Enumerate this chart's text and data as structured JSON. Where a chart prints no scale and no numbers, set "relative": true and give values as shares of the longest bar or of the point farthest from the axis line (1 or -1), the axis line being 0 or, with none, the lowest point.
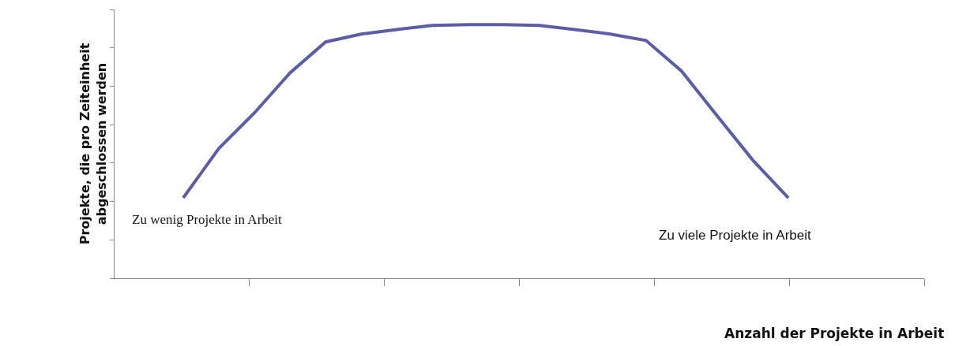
{
  "chart_data": {
    "type": "line",
    "relative": true,
    "xlabel": "Anzahl der Projekte in Arbeit",
    "ylabel": "Projekte, die pro Zeiteinheit\nabgeschlossen werden",
    "categories": [
      null,
      null,
      null,
      null,
      null,
      null,
      null,
      null,
      null,
      null,
      null,
      null,
      null,
      null,
      null,
      null,
      null,
      null
    ],
    "series": [
      {
        "color": "#5b5ea6",
        "values": [
          0.317,
          0.512,
          0.652,
          0.81,
          0.932,
          0.963,
          0.981,
          0.997,
          1,
          1,
          0.997,
          0.981,
          0.963,
          0.938,
          0.817,
          0.64,
          0.466,
          0.317
        ]
      }
    ],
    "annotations": [
      "Zu wenig Projekte in Arbeit",
      "Zu viele Projekte in Arbeit"
    ],
    "marker": "none",
    "line_style": "solid"
  }
}
